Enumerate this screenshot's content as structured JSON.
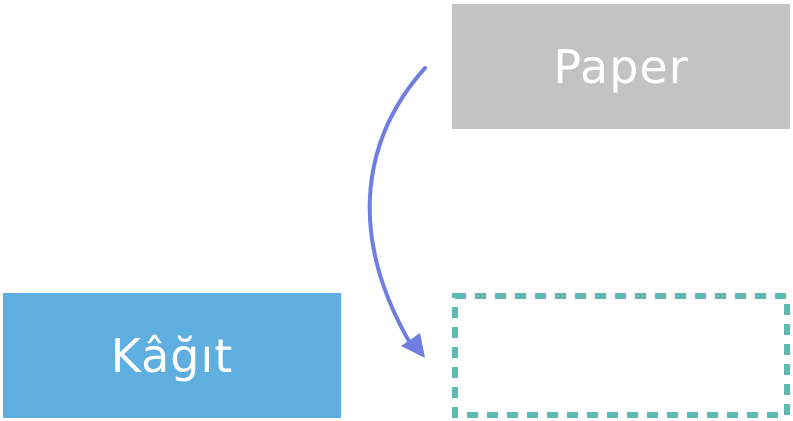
{
  "source_card": {
    "label": "Paper",
    "color": "#c3c3c3"
  },
  "target_card": {
    "label": "Kâğıt",
    "color": "#5eaee0"
  },
  "drop_slot": {
    "border_color": "#5dbbb4"
  },
  "arrow": {
    "color": "#6f7fe1"
  }
}
